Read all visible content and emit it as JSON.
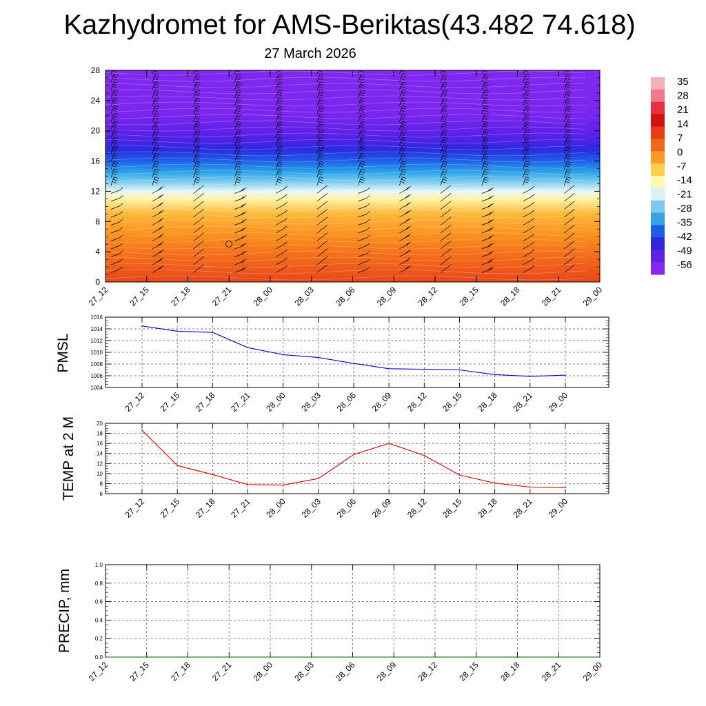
{
  "header": {
    "title": "Kazhydromet for AMS-Beriktas(43.482 74.618)",
    "date": "27 March 2026"
  },
  "chart_data": [
    {
      "type": "heatmap",
      "name": "vertical-profile",
      "x_tick_labels": [
        "27_12",
        "27_15",
        "27_18",
        "27_21",
        "28_00",
        "28_03",
        "28_06",
        "28_09",
        "28_12",
        "28_15",
        "28_18",
        "28_21",
        "29_00"
      ],
      "y_tick_labels": [
        "0",
        "4",
        "8",
        "12",
        "16",
        "20",
        "24",
        "28"
      ],
      "ylim": [
        0,
        28
      ],
      "color_bands": [
        {
          "level": 0,
          "color": "#e8481a"
        },
        {
          "level": 3,
          "color": "#f2681a"
        },
        {
          "level": 6,
          "color": "#fb8e1e"
        },
        {
          "level": 9,
          "color": "#fdb83a"
        },
        {
          "level": 11,
          "color": "#fff4a8"
        },
        {
          "level": 12,
          "color": "#e8f6f8"
        },
        {
          "level": 13,
          "color": "#8fd4f0"
        },
        {
          "level": 14.5,
          "color": "#2ca7e8"
        },
        {
          "level": 16,
          "color": "#2060e8"
        },
        {
          "level": 17.5,
          "color": "#2a2ce0"
        },
        {
          "level": 19,
          "color": "#5420e8"
        },
        {
          "level": 22,
          "color": "#7a26ee"
        },
        {
          "level": 28,
          "color": "#8228f0"
        }
      ],
      "colorbar": {
        "labels": [
          "35",
          "28",
          "21",
          "14",
          "7",
          "0",
          "-7",
          "-14",
          "-21",
          "-28",
          "-35",
          "-42",
          "-49",
          "-56"
        ],
        "colors": [
          "#f3b0b8",
          "#f07888",
          "#e83040",
          "#d41010",
          "#e83c14",
          "#f06818",
          "#fa9828",
          "#fecc4e",
          "#fff8b0",
          "#d8f2f6",
          "#7ccaf0",
          "#34a2e4",
          "#1e5ee6",
          "#2e28dc",
          "#5c22e6",
          "#8228f0"
        ]
      }
    },
    {
      "type": "line",
      "name": "pmsl",
      "ylabel": "PMSL",
      "x_tick_labels": [
        "27_12",
        "27_15",
        "27_18",
        "27_21",
        "28_00",
        "28_03",
        "28_06",
        "28_09",
        "28_12",
        "28_15",
        "28_18",
        "28_21",
        "29_00"
      ],
      "y_tick_labels": [
        "1004",
        "1006",
        "1008",
        "1010",
        "1012",
        "1014",
        "1016"
      ],
      "ylim": [
        1004,
        1016
      ],
      "values": [
        1014.5,
        1013.6,
        1013.4,
        1010.8,
        1009.6,
        1009.1,
        1008.1,
        1007.2,
        1007.1,
        1007.0,
        1006.2,
        1005.9,
        1006.1
      ],
      "color": "#0000cc"
    },
    {
      "type": "line",
      "name": "temperature",
      "ylabel": "TEMP at 2 M",
      "x_tick_labels": [
        "27_12",
        "27_15",
        "27_18",
        "27_21",
        "28_00",
        "28_03",
        "28_06",
        "28_09",
        "28_12",
        "28_15",
        "28_18",
        "28_21",
        "29_00"
      ],
      "y_tick_labels": [
        "6",
        "8",
        "10",
        "12",
        "14",
        "16",
        "18",
        "20"
      ],
      "ylim": [
        6,
        20
      ],
      "values": [
        18.6,
        11.6,
        9.8,
        7.8,
        7.7,
        9.0,
        13.8,
        16.0,
        13.6,
        9.7,
        8.1,
        7.3,
        7.2
      ],
      "color": "#dd0000"
    },
    {
      "type": "line",
      "name": "precipitation",
      "ylabel": "PRECIP, mm",
      "x_tick_labels": [
        "27_12",
        "27_15",
        "27_18",
        "27_21",
        "28_00",
        "28_03",
        "28_06",
        "28_09",
        "28_12",
        "28_15",
        "28_18",
        "28_21",
        "29_00"
      ],
      "y_tick_labels": [
        "0.0",
        "0.2",
        "0.4",
        "0.6",
        "0.8",
        "1.0"
      ],
      "ylim": [
        0,
        1
      ],
      "values": [
        0,
        0,
        0,
        0,
        0,
        0,
        0,
        0,
        0,
        0,
        0,
        0,
        0
      ],
      "color": "#006400"
    }
  ]
}
